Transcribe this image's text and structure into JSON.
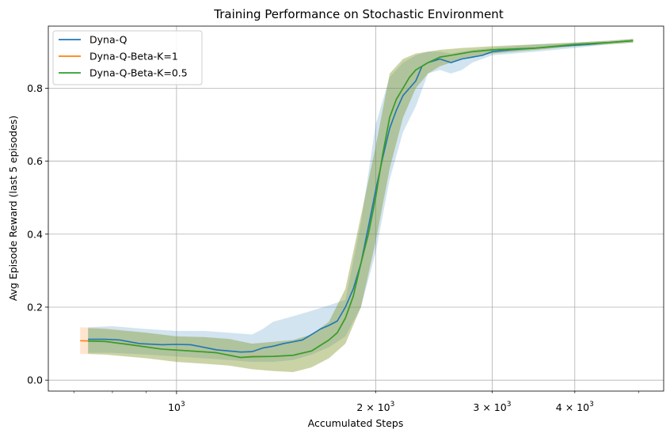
{
  "chart_data": {
    "type": "line",
    "title": "Training Performance on Stochastic Environment",
    "xlabel": "Accumulated Steps",
    "ylabel": "Avg Episode Reward (last 5 episodes)",
    "xscale": "log",
    "xlim": [
      640,
      5450
    ],
    "ylim": [
      -0.03,
      0.97
    ],
    "grid": true,
    "legend_position": "top-left",
    "x_ticks": [
      {
        "value": 1000,
        "base": "10",
        "exp": "3",
        "mult": ""
      },
      {
        "value": 2000,
        "base": "10",
        "exp": "3",
        "mult": "2 × "
      },
      {
        "value": 3000,
        "base": "10",
        "exp": "3",
        "mult": "3 × "
      },
      {
        "value": 4000,
        "base": "10",
        "exp": "3",
        "mult": "4 × "
      }
    ],
    "y_ticks": [
      {
        "value": 0.0,
        "label": "0.0"
      },
      {
        "value": 0.2,
        "label": "0.2"
      },
      {
        "value": 0.4,
        "label": "0.4"
      },
      {
        "value": 0.6,
        "label": "0.6"
      },
      {
        "value": 0.8,
        "label": "0.8"
      }
    ],
    "series": [
      {
        "name": "Dyna-Q",
        "color": "#1f77b4",
        "band_opacity": 0.2,
        "points": [
          [
            735,
            0.112
          ],
          [
            780,
            0.112
          ],
          [
            820,
            0.11
          ],
          [
            880,
            0.1
          ],
          [
            950,
            0.097
          ],
          [
            1000,
            0.098
          ],
          [
            1050,
            0.097
          ],
          [
            1100,
            0.09
          ],
          [
            1150,
            0.083
          ],
          [
            1200,
            0.08
          ],
          [
            1250,
            0.077
          ],
          [
            1300,
            0.078
          ],
          [
            1350,
            0.088
          ],
          [
            1400,
            0.093
          ],
          [
            1450,
            0.1
          ],
          [
            1500,
            0.105
          ],
          [
            1550,
            0.11
          ],
          [
            1600,
            0.125
          ],
          [
            1650,
            0.14
          ],
          [
            1700,
            0.15
          ],
          [
            1750,
            0.162
          ],
          [
            1800,
            0.2
          ],
          [
            1850,
            0.25
          ],
          [
            1900,
            0.32
          ],
          [
            1950,
            0.42
          ],
          [
            2000,
            0.52
          ],
          [
            2050,
            0.61
          ],
          [
            2100,
            0.69
          ],
          [
            2150,
            0.74
          ],
          [
            2200,
            0.78
          ],
          [
            2250,
            0.8
          ],
          [
            2300,
            0.82
          ],
          [
            2350,
            0.86
          ],
          [
            2400,
            0.87
          ],
          [
            2450,
            0.875
          ],
          [
            2500,
            0.88
          ],
          [
            2550,
            0.875
          ],
          [
            2600,
            0.87
          ],
          [
            2650,
            0.875
          ],
          [
            2700,
            0.88
          ],
          [
            2800,
            0.885
          ],
          [
            2900,
            0.89
          ],
          [
            3000,
            0.9
          ],
          [
            3200,
            0.905
          ],
          [
            3500,
            0.91
          ],
          [
            3800,
            0.915
          ],
          [
            4200,
            0.92
          ],
          [
            4500,
            0.925
          ],
          [
            4900,
            0.93
          ]
        ],
        "lower": [
          [
            735,
            0.075
          ],
          [
            800,
            0.075
          ],
          [
            900,
            0.07
          ],
          [
            1000,
            0.065
          ],
          [
            1100,
            0.06
          ],
          [
            1200,
            0.055
          ],
          [
            1300,
            0.05
          ],
          [
            1400,
            0.05
          ],
          [
            1500,
            0.055
          ],
          [
            1600,
            0.07
          ],
          [
            1700,
            0.09
          ],
          [
            1800,
            0.12
          ],
          [
            1900,
            0.2
          ],
          [
            2000,
            0.35
          ],
          [
            2100,
            0.55
          ],
          [
            2200,
            0.68
          ],
          [
            2300,
            0.75
          ],
          [
            2400,
            0.84
          ],
          [
            2500,
            0.85
          ],
          [
            2600,
            0.84
          ],
          [
            2700,
            0.85
          ],
          [
            2800,
            0.87
          ],
          [
            3000,
            0.89
          ],
          [
            3500,
            0.9
          ],
          [
            4000,
            0.91
          ],
          [
            4500,
            0.92
          ],
          [
            4900,
            0.925
          ]
        ],
        "upper": [
          [
            735,
            0.145
          ],
          [
            800,
            0.148
          ],
          [
            900,
            0.14
          ],
          [
            1000,
            0.135
          ],
          [
            1100,
            0.135
          ],
          [
            1200,
            0.13
          ],
          [
            1300,
            0.125
          ],
          [
            1350,
            0.14
          ],
          [
            1400,
            0.16
          ],
          [
            1500,
            0.175
          ],
          [
            1600,
            0.19
          ],
          [
            1700,
            0.205
          ],
          [
            1800,
            0.22
          ],
          [
            1900,
            0.43
          ],
          [
            2000,
            0.7
          ],
          [
            2100,
            0.83
          ],
          [
            2200,
            0.87
          ],
          [
            2300,
            0.89
          ],
          [
            2400,
            0.9
          ],
          [
            2500,
            0.9
          ],
          [
            2600,
            0.895
          ],
          [
            2700,
            0.9
          ],
          [
            2800,
            0.905
          ],
          [
            3000,
            0.91
          ],
          [
            3500,
            0.92
          ],
          [
            4000,
            0.925
          ],
          [
            4500,
            0.93
          ],
          [
            4900,
            0.935
          ]
        ]
      },
      {
        "name": "Dyna-Q-Beta-K=1",
        "color": "#ff7f0e",
        "band_opacity": 0.2,
        "points": [
          [
            715,
            0.108
          ],
          [
            780,
            0.106
          ],
          [
            850,
            0.098
          ],
          [
            950,
            0.085
          ],
          [
            1050,
            0.08
          ],
          [
            1150,
            0.075
          ],
          [
            1250,
            0.062
          ],
          [
            1300,
            0.065
          ],
          [
            1400,
            0.065
          ],
          [
            1500,
            0.068
          ],
          [
            1600,
            0.08
          ],
          [
            1700,
            0.11
          ],
          [
            1750,
            0.13
          ],
          [
            1800,
            0.17
          ],
          [
            1850,
            0.23
          ],
          [
            1900,
            0.32
          ],
          [
            1950,
            0.4
          ],
          [
            2000,
            0.5
          ],
          [
            2050,
            0.62
          ],
          [
            2100,
            0.72
          ],
          [
            2150,
            0.77
          ],
          [
            2200,
            0.8
          ],
          [
            2250,
            0.83
          ],
          [
            2300,
            0.85
          ],
          [
            2350,
            0.86
          ],
          [
            2400,
            0.87
          ],
          [
            2500,
            0.885
          ],
          [
            2600,
            0.89
          ],
          [
            2700,
            0.895
          ],
          [
            2800,
            0.9
          ],
          [
            3000,
            0.905
          ],
          [
            3500,
            0.91
          ],
          [
            4000,
            0.92
          ],
          [
            4500,
            0.925
          ],
          [
            4900,
            0.93
          ]
        ],
        "lower": [
          [
            715,
            0.072
          ],
          [
            780,
            0.07
          ],
          [
            900,
            0.06
          ],
          [
            1000,
            0.05
          ],
          [
            1100,
            0.045
          ],
          [
            1200,
            0.04
          ],
          [
            1300,
            0.03
          ],
          [
            1400,
            0.025
          ],
          [
            1500,
            0.022
          ],
          [
            1600,
            0.035
          ],
          [
            1700,
            0.06
          ],
          [
            1800,
            0.1
          ],
          [
            1900,
            0.2
          ],
          [
            2000,
            0.38
          ],
          [
            2100,
            0.58
          ],
          [
            2200,
            0.72
          ],
          [
            2300,
            0.8
          ],
          [
            2400,
            0.84
          ],
          [
            2500,
            0.86
          ],
          [
            2700,
            0.88
          ],
          [
            3000,
            0.895
          ],
          [
            3500,
            0.905
          ],
          [
            4000,
            0.915
          ],
          [
            4500,
            0.92
          ],
          [
            4900,
            0.925
          ]
        ],
        "upper": [
          [
            715,
            0.145
          ],
          [
            780,
            0.142
          ],
          [
            900,
            0.13
          ],
          [
            1000,
            0.12
          ],
          [
            1100,
            0.118
          ],
          [
            1200,
            0.113
          ],
          [
            1300,
            0.1
          ],
          [
            1400,
            0.105
          ],
          [
            1500,
            0.11
          ],
          [
            1600,
            0.125
          ],
          [
            1700,
            0.16
          ],
          [
            1800,
            0.25
          ],
          [
            1900,
            0.45
          ],
          [
            2000,
            0.64
          ],
          [
            2100,
            0.84
          ],
          [
            2200,
            0.88
          ],
          [
            2300,
            0.895
          ],
          [
            2400,
            0.9
          ],
          [
            2500,
            0.905
          ],
          [
            2700,
            0.91
          ],
          [
            3000,
            0.915
          ],
          [
            3500,
            0.92
          ],
          [
            4000,
            0.925
          ],
          [
            4500,
            0.93
          ],
          [
            4900,
            0.935
          ]
        ]
      },
      {
        "name": "Dyna-Q-Beta-K=0.5",
        "color": "#2ca02c",
        "band_opacity": 0.25,
        "points": [
          [
            735,
            0.107
          ],
          [
            780,
            0.106
          ],
          [
            850,
            0.097
          ],
          [
            950,
            0.085
          ],
          [
            1050,
            0.08
          ],
          [
            1150,
            0.075
          ],
          [
            1250,
            0.062
          ],
          [
            1300,
            0.064
          ],
          [
            1400,
            0.065
          ],
          [
            1500,
            0.068
          ],
          [
            1600,
            0.08
          ],
          [
            1700,
            0.11
          ],
          [
            1750,
            0.13
          ],
          [
            1800,
            0.17
          ],
          [
            1850,
            0.23
          ],
          [
            1900,
            0.32
          ],
          [
            1950,
            0.4
          ],
          [
            2000,
            0.5
          ],
          [
            2050,
            0.62
          ],
          [
            2100,
            0.72
          ],
          [
            2150,
            0.77
          ],
          [
            2200,
            0.8
          ],
          [
            2250,
            0.83
          ],
          [
            2300,
            0.85
          ],
          [
            2350,
            0.86
          ],
          [
            2400,
            0.87
          ],
          [
            2500,
            0.885
          ],
          [
            2600,
            0.89
          ],
          [
            2700,
            0.895
          ],
          [
            2800,
            0.9
          ],
          [
            3000,
            0.905
          ],
          [
            3500,
            0.91
          ],
          [
            4000,
            0.92
          ],
          [
            4500,
            0.925
          ],
          [
            4900,
            0.93
          ]
        ],
        "lower": [
          [
            735,
            0.072
          ],
          [
            780,
            0.07
          ],
          [
            900,
            0.06
          ],
          [
            1000,
            0.05
          ],
          [
            1100,
            0.045
          ],
          [
            1200,
            0.04
          ],
          [
            1300,
            0.03
          ],
          [
            1400,
            0.025
          ],
          [
            1500,
            0.022
          ],
          [
            1600,
            0.035
          ],
          [
            1700,
            0.06
          ],
          [
            1800,
            0.1
          ],
          [
            1900,
            0.2
          ],
          [
            2000,
            0.38
          ],
          [
            2100,
            0.58
          ],
          [
            2200,
            0.72
          ],
          [
            2300,
            0.8
          ],
          [
            2400,
            0.84
          ],
          [
            2500,
            0.86
          ],
          [
            2700,
            0.88
          ],
          [
            3000,
            0.895
          ],
          [
            3500,
            0.905
          ],
          [
            4000,
            0.915
          ],
          [
            4500,
            0.92
          ],
          [
            4900,
            0.925
          ]
        ],
        "upper": [
          [
            735,
            0.142
          ],
          [
            780,
            0.14
          ],
          [
            900,
            0.13
          ],
          [
            1000,
            0.12
          ],
          [
            1100,
            0.118
          ],
          [
            1200,
            0.113
          ],
          [
            1300,
            0.1
          ],
          [
            1400,
            0.105
          ],
          [
            1500,
            0.11
          ],
          [
            1600,
            0.125
          ],
          [
            1700,
            0.16
          ],
          [
            1800,
            0.25
          ],
          [
            1900,
            0.45
          ],
          [
            2000,
            0.64
          ],
          [
            2100,
            0.84
          ],
          [
            2200,
            0.88
          ],
          [
            2300,
            0.895
          ],
          [
            2400,
            0.9
          ],
          [
            2500,
            0.905
          ],
          [
            2700,
            0.91
          ],
          [
            3000,
            0.915
          ],
          [
            3500,
            0.92
          ],
          [
            4000,
            0.925
          ],
          [
            4500,
            0.93
          ],
          [
            4900,
            0.935
          ]
        ]
      }
    ]
  }
}
